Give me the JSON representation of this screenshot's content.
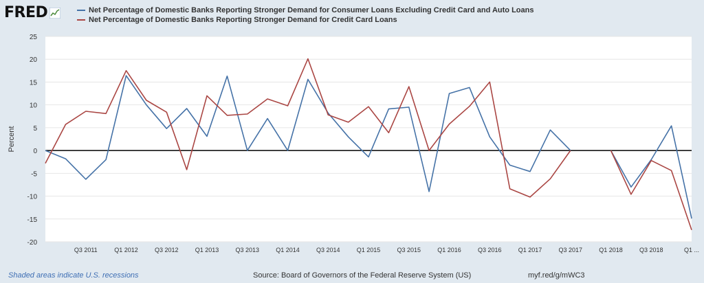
{
  "header": {
    "logo_text": "FRED",
    "logo_icon": "chart-line-icon"
  },
  "colors": {
    "series1": "#4572a7",
    "series2": "#aa4643",
    "background": "#e1e9f0",
    "plot": "#ffffff",
    "grid": "#e6e6e6"
  },
  "chart_data": {
    "type": "line",
    "title": "",
    "xlabel": "",
    "ylabel": "Percent",
    "ylim": [
      -20,
      25
    ],
    "yticks": [
      25,
      20,
      15,
      10,
      5,
      0,
      -5,
      -10,
      -15,
      -20
    ],
    "grid": true,
    "legend_position": "top-left",
    "xtick_labels": [
      "Q3 2011",
      "Q1 2012",
      "Q3 2012",
      "Q1 2013",
      "Q3 2013",
      "Q1 2014",
      "Q3 2014",
      "Q1 2015",
      "Q3 2015",
      "Q1 2016",
      "Q3 2016",
      "Q1 2017",
      "Q3 2017",
      "Q1 2018",
      "Q3 2018",
      "Q1 ..."
    ],
    "x": [
      "2011Q1",
      "2011Q2",
      "2011Q3",
      "2011Q4",
      "2012Q1",
      "2012Q2",
      "2012Q3",
      "2012Q4",
      "2013Q1",
      "2013Q2",
      "2013Q3",
      "2013Q4",
      "2014Q1",
      "2014Q2",
      "2014Q3",
      "2014Q4",
      "2015Q1",
      "2015Q2",
      "2015Q3",
      "2015Q4",
      "2016Q1",
      "2016Q2",
      "2016Q3",
      "2016Q4",
      "2017Q1",
      "2017Q2",
      "2017Q3",
      "2017Q4",
      "2018Q1",
      "2018Q2",
      "2018Q3",
      "2018Q4",
      "2019Q1"
    ],
    "series": [
      {
        "name": "Net Percentage of Domestic Banks Reporting Stronger Demand for Consumer Loans Excluding Credit Card and Auto Loans",
        "color": "#4572a7",
        "values": [
          0,
          -1.8,
          -6.3,
          -2.0,
          16.4,
          10.0,
          4.8,
          9.2,
          3.1,
          16.3,
          0.0,
          7.0,
          0.0,
          15.6,
          8.2,
          3.0,
          -1.4,
          9.1,
          9.5,
          -9.0,
          12.5,
          13.8,
          3.0,
          -3.2,
          -4.6,
          4.5,
          0.0,
          null,
          0.0,
          -8.0,
          -2.0,
          5.4,
          -14.9
        ]
      },
      {
        "name": "Net Percentage of Domestic Banks Reporting Stronger Demand for Credit Card Loans",
        "color": "#aa4643",
        "values": [
          -2.8,
          5.7,
          8.6,
          8.1,
          17.5,
          11.0,
          8.4,
          -4.2,
          12.0,
          7.7,
          8.0,
          11.3,
          9.8,
          20.1,
          7.8,
          6.2,
          9.6,
          3.9,
          14.0,
          0.0,
          5.8,
          9.7,
          15.0,
          -8.4,
          -10.2,
          -6.2,
          0.0,
          null,
          0.0,
          -9.6,
          -2.2,
          -4.4,
          -17.4
        ]
      }
    ]
  },
  "footer": {
    "recession_note": "Shaded areas indicate U.S. recessions",
    "source": "Source: Board of Governors of the Federal Reserve System (US)",
    "shorturl": "myf.red/g/mWC3"
  }
}
